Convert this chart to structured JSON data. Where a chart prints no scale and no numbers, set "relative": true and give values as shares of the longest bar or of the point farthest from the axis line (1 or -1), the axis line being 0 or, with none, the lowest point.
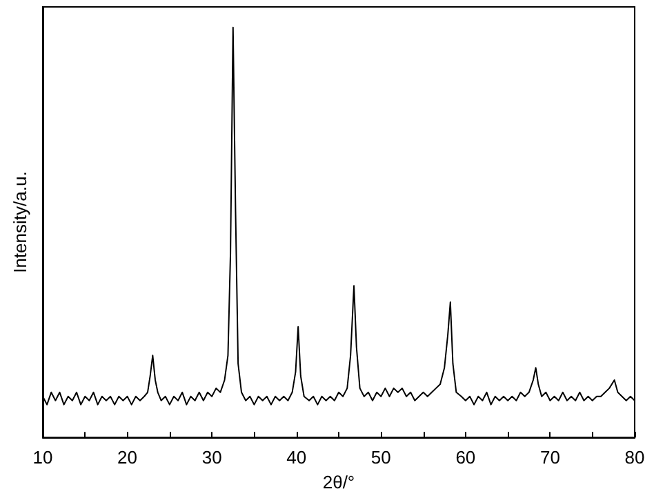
{
  "chart_data": {
    "type": "line",
    "xlabel": "2θ/°",
    "ylabel": "Intensity/a.u.",
    "relative": true,
    "xlim": [
      10,
      80
    ],
    "xticks": [
      10,
      {
        "value": 15,
        "label": null
      },
      20,
      {
        "value": 25,
        "label": null
      },
      30,
      {
        "value": 35,
        "label": null
      },
      40,
      {
        "value": 45,
        "label": null
      },
      50,
      {
        "value": 55,
        "label": null
      },
      60,
      {
        "value": 65,
        "label": null
      },
      70,
      {
        "value": 75,
        "label": null
      },
      80
    ],
    "tick_labels": "x",
    "grid": false,
    "marker": "none",
    "line_style": "solid",
    "series": [
      {
        "color": "#000000",
        "x": [
          10,
          10.5,
          11,
          11.5,
          12,
          12.5,
          13,
          13.5,
          14,
          14.5,
          15,
          15.5,
          16,
          16.5,
          17,
          17.5,
          18,
          18.5,
          19,
          19.5,
          20,
          20.5,
          21,
          21.5,
          22,
          22.4,
          22.7,
          23.0,
          23.3,
          23.6,
          24,
          24.5,
          25,
          25.5,
          26,
          26.5,
          27,
          27.5,
          28,
          28.5,
          29,
          29.5,
          30,
          30.5,
          31,
          31.5,
          31.9,
          32.2,
          32.5,
          32.8,
          33.1,
          33.5,
          34,
          34.5,
          35,
          35.5,
          36,
          36.5,
          37,
          37.5,
          38,
          38.5,
          39,
          39.5,
          39.9,
          40.2,
          40.5,
          40.9,
          41.5,
          42,
          42.5,
          43,
          43.5,
          44,
          44.5,
          45,
          45.5,
          46,
          46.4,
          46.8,
          47.1,
          47.5,
          48,
          48.5,
          49,
          49.5,
          50,
          50.5,
          51,
          51.5,
          52,
          52.5,
          53,
          53.5,
          54,
          54.5,
          55,
          55.5,
          56,
          56.5,
          57,
          57.5,
          57.9,
          58.2,
          58.5,
          58.9,
          59.5,
          60,
          60.5,
          61,
          61.5,
          62,
          62.5,
          63,
          63.5,
          64,
          64.5,
          65,
          65.5,
          66,
          66.5,
          67,
          67.5,
          68,
          68.3,
          68.6,
          69,
          69.5,
          70,
          70.5,
          71,
          71.5,
          72,
          72.5,
          73,
          73.5,
          74,
          74.5,
          75,
          75.5,
          76,
          76.5,
          77,
          77.6,
          78,
          78.5,
          79,
          79.5,
          80
        ],
        "values": [
          0.1,
          0.08,
          0.11,
          0.09,
          0.11,
          0.08,
          0.1,
          0.09,
          0.11,
          0.08,
          0.1,
          0.09,
          0.11,
          0.08,
          0.1,
          0.09,
          0.1,
          0.08,
          0.1,
          0.09,
          0.1,
          0.08,
          0.1,
          0.09,
          0.1,
          0.11,
          0.15,
          0.2,
          0.14,
          0.11,
          0.09,
          0.1,
          0.08,
          0.1,
          0.09,
          0.11,
          0.08,
          0.1,
          0.09,
          0.11,
          0.09,
          0.11,
          0.1,
          0.12,
          0.11,
          0.14,
          0.2,
          0.45,
          1.0,
          0.55,
          0.18,
          0.11,
          0.09,
          0.1,
          0.08,
          0.1,
          0.09,
          0.1,
          0.08,
          0.1,
          0.09,
          0.1,
          0.09,
          0.11,
          0.16,
          0.27,
          0.15,
          0.1,
          0.09,
          0.1,
          0.08,
          0.1,
          0.09,
          0.1,
          0.09,
          0.11,
          0.1,
          0.12,
          0.2,
          0.37,
          0.22,
          0.12,
          0.1,
          0.11,
          0.09,
          0.11,
          0.1,
          0.12,
          0.1,
          0.12,
          0.11,
          0.12,
          0.1,
          0.11,
          0.09,
          0.1,
          0.11,
          0.1,
          0.11,
          0.12,
          0.13,
          0.17,
          0.25,
          0.33,
          0.18,
          0.11,
          0.1,
          0.09,
          0.1,
          0.08,
          0.1,
          0.09,
          0.11,
          0.08,
          0.1,
          0.09,
          0.1,
          0.09,
          0.1,
          0.09,
          0.11,
          0.1,
          0.11,
          0.14,
          0.17,
          0.13,
          0.1,
          0.11,
          0.09,
          0.1,
          0.09,
          0.11,
          0.09,
          0.1,
          0.09,
          0.11,
          0.09,
          0.1,
          0.09,
          0.1,
          0.1,
          0.11,
          0.12,
          0.14,
          0.11,
          0.1,
          0.09,
          0.1,
          0.09
        ]
      }
    ]
  }
}
